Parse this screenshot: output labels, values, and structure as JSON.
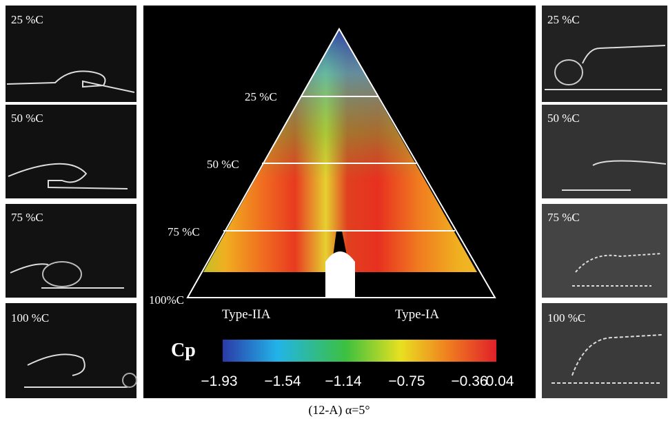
{
  "left_panels": [
    {
      "label": "25 %C"
    },
    {
      "label": "50 %C"
    },
    {
      "label": "75 %C"
    },
    {
      "label": "100 %C"
    }
  ],
  "right_panels": [
    {
      "label": "25 %C"
    },
    {
      "label": "50 %C"
    },
    {
      "label": "75 %C"
    },
    {
      "label": "100 %C"
    }
  ],
  "center": {
    "stations": [
      "25 %C",
      "50 %C",
      "75 %C",
      "100%C"
    ],
    "left_type": "Type-IIA",
    "right_type": "Type-IA",
    "colorbar": {
      "label": "Cp",
      "ticks": [
        "−1.93",
        "−1.54",
        "−1.14",
        "−0.75",
        "−0.36",
        "0.04"
      ]
    }
  },
  "caption": "(12-A) α=5°"
}
